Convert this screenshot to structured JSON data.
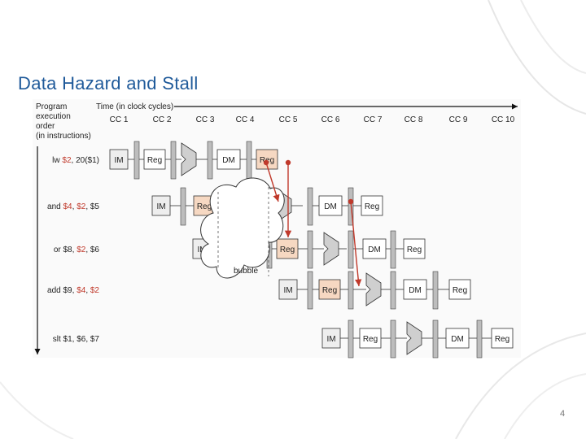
{
  "slide": {
    "title": "Data Hazard and Stall",
    "page_number": "4"
  },
  "axes": {
    "y_label_lines": [
      "Program",
      "execution",
      "order",
      "(in instructions)"
    ],
    "x_label": "Time (in clock cycles)"
  },
  "clock_cycles": [
    "CC 1",
    "CC 2",
    "CC 3",
    "CC 4",
    "CC 5",
    "CC 6",
    "CC 7",
    "CC 8",
    "CC 9",
    "CC 10"
  ],
  "instructions": [
    {
      "parts": [
        {
          "t": "lw ",
          "h": false
        },
        {
          "t": "$2",
          "h": true
        },
        {
          "t": ", 20($1)",
          "h": false
        }
      ]
    },
    {
      "parts": [
        {
          "t": "and ",
          "h": false
        },
        {
          "t": "$4",
          "h": true
        },
        {
          "t": ", ",
          "h": false
        },
        {
          "t": "$2",
          "h": true
        },
        {
          "t": ", $5",
          "h": false
        }
      ]
    },
    {
      "parts": [
        {
          "t": "or $8, ",
          "h": false
        },
        {
          "t": "$2",
          "h": true
        },
        {
          "t": ", $6",
          "h": false
        }
      ]
    },
    {
      "parts": [
        {
          "t": "add $9, ",
          "h": false
        },
        {
          "t": "$4",
          "h": true
        },
        {
          "t": ", ",
          "h": false
        },
        {
          "t": "$2",
          "h": true
        }
      ]
    },
    {
      "parts": [
        {
          "t": "slt $1, $6, $7",
          "h": false
        }
      ]
    }
  ],
  "stage_labels": {
    "im": "IM",
    "reg": "Reg",
    "dm": "DM"
  },
  "bubble_label": "bubble",
  "colors": {
    "title": "#1f5a9a",
    "hazard": "#c0392b",
    "highlight": "#f6d8c2",
    "bar": "#bdbdbd",
    "alu": "#cfcfcf"
  }
}
